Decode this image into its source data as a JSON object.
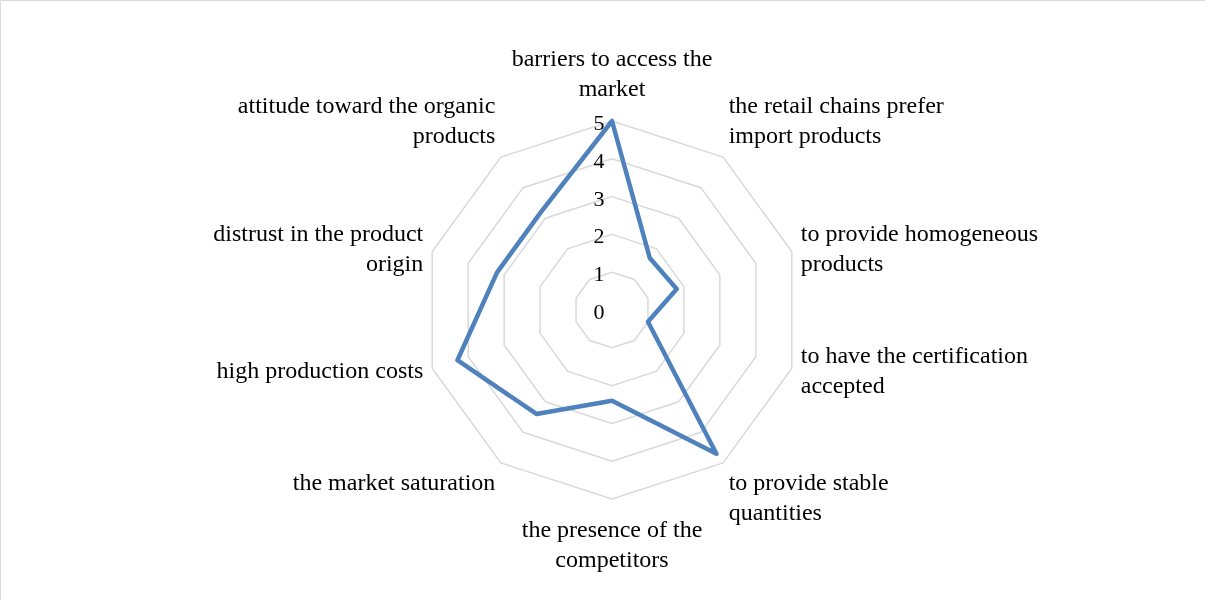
{
  "chart_data": {
    "type": "radar",
    "categories": [
      "barriers to access the market",
      "the retail chains prefer import products",
      "to provide homogeneous products",
      "to have the certification accepted",
      "to provide stable quantities",
      "the presence of the competitors",
      "the market saturation",
      "high production costs",
      "distrust in the product origin",
      "attitude toward the organic products"
    ],
    "series": [
      {
        "color": "#4f81bd",
        "values": [
          5,
          1.7,
          1.8,
          1.0,
          4.7,
          2.4,
          3.4,
          4.3,
          3.2,
          3.2
        ]
      }
    ],
    "ylim": [
      0,
      5
    ],
    "yticks": [
      0,
      1,
      2,
      3,
      4,
      5
    ],
    "grid": true
  }
}
